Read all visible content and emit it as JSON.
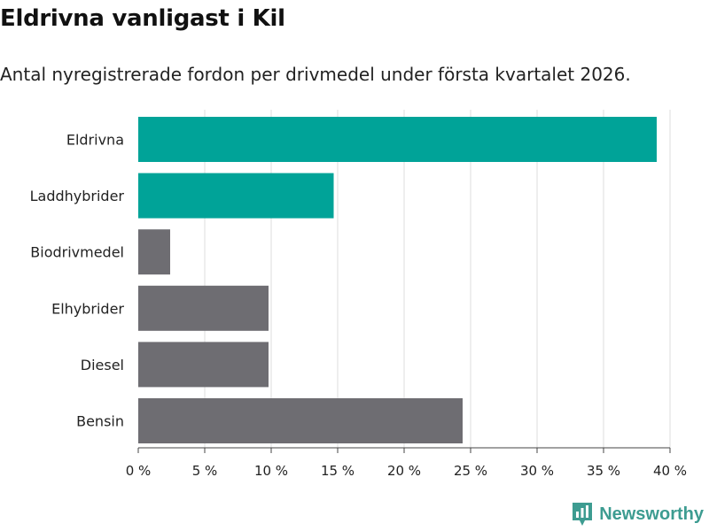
{
  "header": {
    "title": "Eldrivna vanligast i Kil",
    "subtitle": "Antal nyregistrerade fordon per drivmedel under första kvartalet 2026."
  },
  "brand": {
    "name": "Newsworthy",
    "logo_icon": "newsworthy-logo-icon"
  },
  "colors": {
    "highlight": "#00a398",
    "default": "#6e6d72",
    "grid": "#dddddd",
    "brand": "#3d9c91"
  },
  "chart_data": {
    "type": "bar",
    "orientation": "horizontal",
    "title": "Eldrivna vanligast i Kil",
    "subtitle": "Antal nyregistrerade fordon per drivmedel under första kvartalet 2026.",
    "categories": [
      "Eldrivna",
      "Laddhybrider",
      "Biodrivmedel",
      "Elhybrider",
      "Diesel",
      "Bensin"
    ],
    "values": [
      39.0,
      14.7,
      2.4,
      9.8,
      9.8,
      24.4
    ],
    "highlighted": [
      true,
      true,
      false,
      false,
      false,
      false
    ],
    "unit": "%",
    "xlim": [
      0,
      40
    ],
    "xticks": [
      0,
      5,
      10,
      15,
      20,
      25,
      30,
      35,
      40
    ],
    "xtick_labels": [
      "0 %",
      "5 %",
      "10 %",
      "15 %",
      "20 %",
      "25 %",
      "30 %",
      "35 %",
      "40 %"
    ],
    "grid": true,
    "xlabel": "",
    "ylabel": ""
  }
}
